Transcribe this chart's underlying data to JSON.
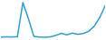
{
  "x": [
    0,
    1,
    2,
    3,
    4,
    5,
    6,
    7,
    8,
    9,
    10,
    11,
    12,
    13,
    14,
    15,
    16,
    17,
    18,
    19
  ],
  "y": [
    55,
    60,
    58,
    62,
    980,
    550,
    75,
    55,
    50,
    60,
    100,
    155,
    115,
    160,
    130,
    150,
    210,
    350,
    580,
    900
  ],
  "line_color": "#2e9fd4",
  "background_color": "#ffffff",
  "linewidth": 1.1
}
